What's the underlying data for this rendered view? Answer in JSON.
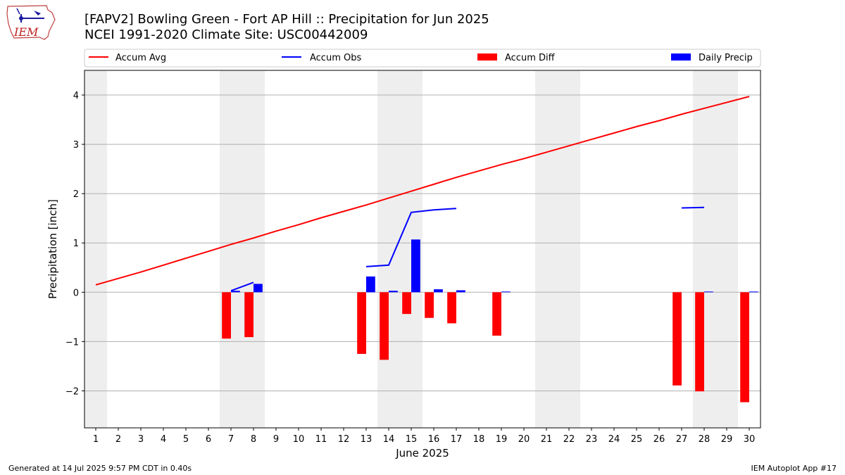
{
  "header": {
    "title_line1": "[FAPV2] Bowling Green - Fort AP Hill :: Precipitation for Jun 2025",
    "title_line2": "NCEI 1991-2020 Climate Site: USC00442009",
    "logo_text": "IEM"
  },
  "footer": {
    "generated": "Generated at 14 Jul 2025 9:57 PM CDT in 0.40s",
    "app": "IEM Autoplot App #17"
  },
  "colors": {
    "avg": "#ff0000",
    "obs": "#0000ff",
    "diff": "#ff0000",
    "daily": "#0000ff",
    "weekend": "#eeeeee",
    "grid": "#b0b0b0"
  },
  "chart_data": {
    "type": "bar",
    "xlabel": "June 2025",
    "ylabel": "Precipitation [inch]",
    "ylim": [
      -2.75,
      4.5
    ],
    "xlim": [
      0.5,
      30.5
    ],
    "yticks": [
      -2,
      -1,
      0,
      1,
      2,
      3,
      4
    ],
    "ytick_labels": [
      "−2",
      "−1",
      "0",
      "1",
      "2",
      "3",
      "4"
    ],
    "days": [
      1,
      2,
      3,
      4,
      5,
      6,
      7,
      8,
      9,
      10,
      11,
      12,
      13,
      14,
      15,
      16,
      17,
      18,
      19,
      20,
      21,
      22,
      23,
      24,
      25,
      26,
      27,
      28,
      29,
      30
    ],
    "grid": "horizontal",
    "legend_placement": "top (above plot, single row)",
    "legend": [
      {
        "label": "Accum Avg",
        "kind": "line",
        "color": "#ff0000"
      },
      {
        "label": "Accum Obs",
        "kind": "line",
        "color": "#0000ff"
      },
      {
        "label": "Accum Diff",
        "kind": "bar",
        "color": "#ff0000"
      },
      {
        "label": "Daily Precip",
        "kind": "bar",
        "color": "#0000ff"
      }
    ],
    "weekend_bands": [
      [
        0.5,
        1.5
      ],
      [
        6.5,
        8.5
      ],
      [
        13.5,
        15.5
      ],
      [
        20.5,
        22.5
      ],
      [
        27.5,
        29.5
      ]
    ],
    "series": [
      {
        "name": "Accum Avg",
        "type": "line",
        "x": [
          1,
          2,
          3,
          4,
          5,
          6,
          7,
          8,
          9,
          10,
          11,
          12,
          13,
          14,
          15,
          16,
          17,
          18,
          19,
          20,
          21,
          22,
          23,
          24,
          25,
          26,
          27,
          28,
          29,
          30
        ],
        "values": [
          0.15,
          0.28,
          0.41,
          0.55,
          0.69,
          0.83,
          0.97,
          1.1,
          1.24,
          1.37,
          1.51,
          1.64,
          1.77,
          1.91,
          2.05,
          2.19,
          2.33,
          2.46,
          2.59,
          2.71,
          2.84,
          2.97,
          3.1,
          3.23,
          3.36,
          3.48,
          3.61,
          3.73,
          3.85,
          3.97
        ]
      },
      {
        "name": "Accum Obs",
        "type": "line",
        "segments": [
          {
            "x": [
              7,
              8
            ],
            "values": [
              0.03,
              0.2
            ]
          },
          {
            "x": [
              13,
              14,
              15,
              16,
              17
            ],
            "values": [
              0.52,
              0.55,
              1.62,
              1.67,
              1.7
            ]
          },
          {
            "x": [
              27,
              28
            ],
            "values": [
              1.71,
              1.72
            ]
          }
        ]
      },
      {
        "name": "Accum Diff",
        "type": "bar",
        "x": [
          7,
          8,
          13,
          14,
          15,
          16,
          17,
          19,
          27,
          28,
          30
        ],
        "values": [
          -0.94,
          -0.91,
          -1.25,
          -1.37,
          -0.44,
          -0.52,
          -0.63,
          -0.88,
          -1.89,
          -2.01,
          -2.23
        ]
      },
      {
        "name": "Daily Precip",
        "type": "bar",
        "x": [
          7,
          8,
          13,
          14,
          15,
          16,
          17,
          19,
          28,
          30
        ],
        "values": [
          0.03,
          0.17,
          0.32,
          0.03,
          1.07,
          0.06,
          0.04,
          0.01,
          0.01,
          0.01
        ]
      }
    ]
  }
}
